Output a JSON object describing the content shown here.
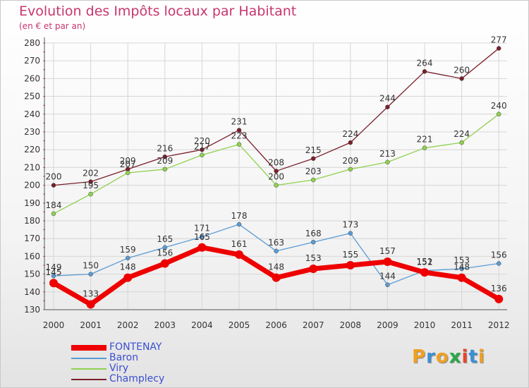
{
  "title": "Evolution des Impôts locaux par Habitant",
  "subtitle": "(en € et par an)",
  "brand": {
    "letters": [
      "P",
      "r",
      "o",
      "x",
      "i",
      "t",
      "i"
    ],
    "colors": [
      "#f0a020",
      "#3b8fd6",
      "#f0a020",
      "#2aa84a",
      "#e8442a",
      "#3b8fd6",
      "#f0a020"
    ]
  },
  "chart_data": {
    "type": "line",
    "title": "Evolution des Impôts locaux par Habitant",
    "subtitle": "(en € et par an)",
    "xlabel": "",
    "ylabel": "",
    "x": [
      "2000",
      "2001",
      "2002",
      "2003",
      "2004",
      "2005",
      "2006",
      "2007",
      "2008",
      "2009",
      "2010",
      "2011",
      "2012"
    ],
    "ylim": [
      130,
      280
    ],
    "yticks": [
      "130",
      "140",
      "150",
      "160",
      "170",
      "180",
      "190",
      "200",
      "210",
      "220",
      "230",
      "240",
      "250",
      "260",
      "270",
      "280"
    ],
    "grid": true,
    "legend_position": "bottom-left",
    "series": [
      {
        "name": "Champlecy",
        "color": "#7a1f2b",
        "values": [
          200,
          202,
          209,
          216,
          220,
          231,
          208,
          215,
          224,
          244,
          264,
          260,
          277
        ],
        "labels": [
          "200",
          "202",
          "209",
          "216",
          "220",
          "231",
          "208",
          "215",
          "224",
          "244",
          "264",
          "260",
          "277"
        ]
      },
      {
        "name": "Viry",
        "color": "#8fd14f",
        "values": [
          184,
          195,
          207,
          209,
          217,
          223,
          200,
          203,
          209,
          213,
          221,
          224,
          240
        ],
        "labels": [
          "184",
          "195",
          "207",
          "209",
          "217",
          "223",
          "200",
          "203",
          "209",
          "213",
          "221",
          "224",
          "240"
        ]
      },
      {
        "name": "Baron",
        "color": "#5a9bd4",
        "values": [
          149,
          150,
          159,
          165,
          171,
          178,
          163,
          168,
          173,
          144,
          152,
          153,
          156
        ],
        "labels": [
          "149",
          "150",
          "159",
          "165",
          "171",
          "178",
          "163",
          "168",
          "173",
          "144",
          "152",
          "153",
          "156"
        ]
      },
      {
        "name": "FONTENAY",
        "color": "#ee0000",
        "values": [
          145,
          133,
          148,
          156,
          165,
          161,
          148,
          153,
          155,
          157,
          151,
          148,
          136
        ],
        "labels": [
          "145",
          "133",
          "148",
          "156",
          "165",
          "161",
          "148",
          "153",
          "155",
          "157",
          "151",
          "148",
          "136"
        ]
      }
    ],
    "legend": [
      {
        "name": "FONTENAY",
        "color": "#ee0000",
        "text_color": "#3a4fd0"
      },
      {
        "name": "Baron",
        "color": "#5a9bd4",
        "text_color": "#3a4fd0"
      },
      {
        "name": "Viry",
        "color": "#8fd14f",
        "text_color": "#3a4fd0"
      },
      {
        "name": "Champlecy",
        "color": "#7a1f2b",
        "text_color": "#3a4fd0"
      }
    ]
  }
}
